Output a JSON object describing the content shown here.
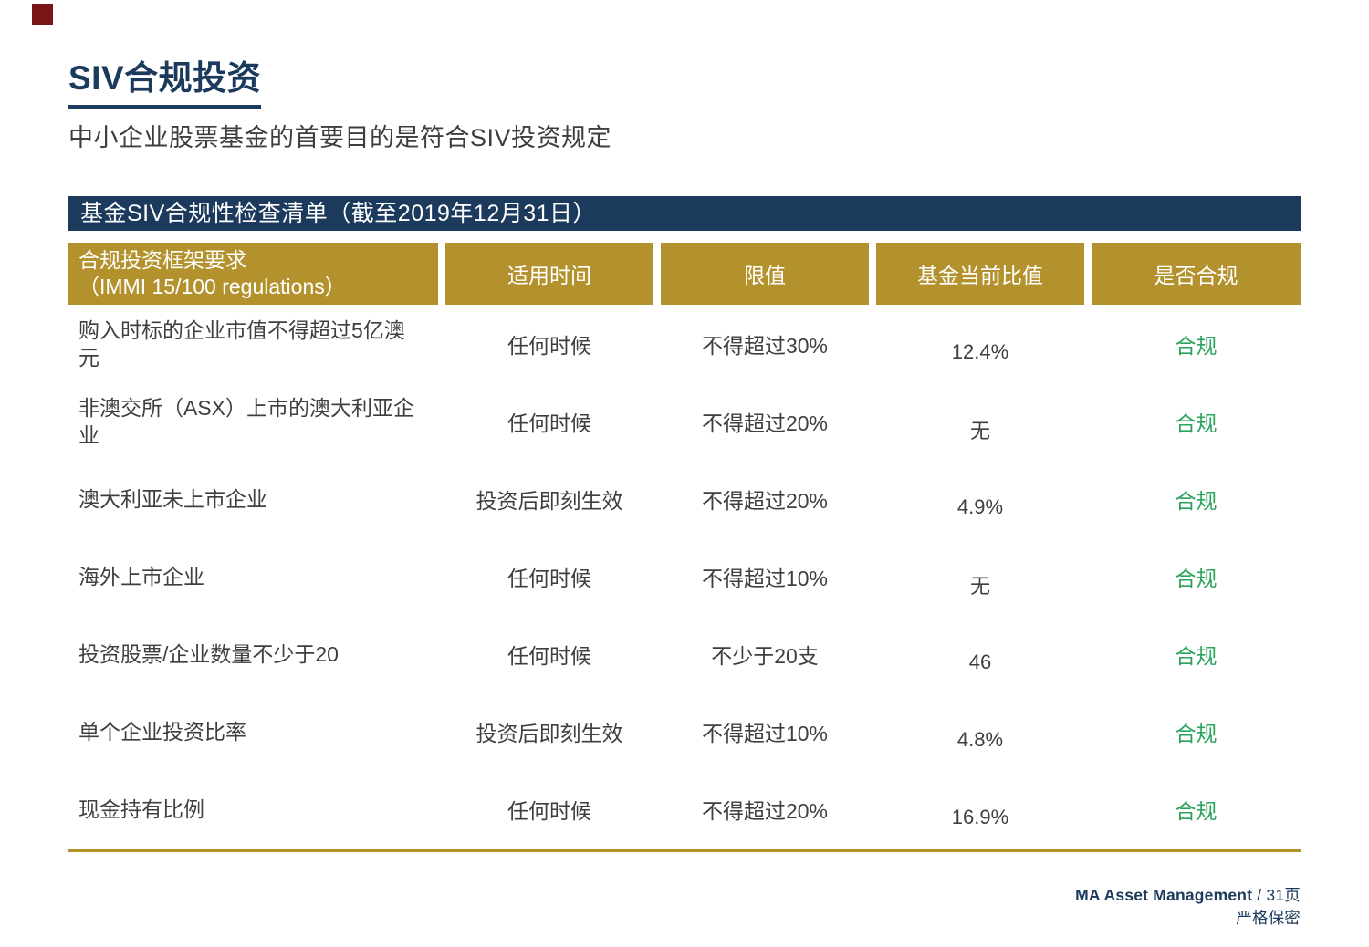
{
  "page": {
    "title": "SIV合规投资",
    "subtitle": "中小企业股票基金的首要目的是符合SIV投资规定"
  },
  "table": {
    "banner": "基金SIV合规性检查清单（截至2019年12月31日）",
    "headers": {
      "requirement_line1": "合规投资框架要求",
      "requirement_line2": "（IMMI 15/100 regulations）",
      "time": "适用时间",
      "limit": "限值",
      "current": "基金当前比值",
      "status": "是否合规"
    },
    "rows": [
      {
        "requirement": "购入时标的企业市值不得超过5亿澳元",
        "time": "任何时候",
        "limit": "不得超过30%",
        "current": "12.4%",
        "status": "合规"
      },
      {
        "requirement": "非澳交所（ASX）上市的澳大利亚企业",
        "time": "任何时候",
        "limit": "不得超过20%",
        "current": "无",
        "status": "合规"
      },
      {
        "requirement": "澳大利亚未上市企业",
        "time": "投资后即刻生效",
        "limit": "不得超过20%",
        "current": "4.9%",
        "status": "合规"
      },
      {
        "requirement": "海外上市企业",
        "time": "任何时候",
        "limit": "不得超过10%",
        "current": "无",
        "status": "合规"
      },
      {
        "requirement": "投资股票/企业数量不少于20",
        "time": "任何时候",
        "limit": "不少于20支",
        "current": "46",
        "status": "合规"
      },
      {
        "requirement": "单个企业投资比率",
        "time": "投资后即刻生效",
        "limit": "不得超过10%",
        "current": "4.8%",
        "status": "合规"
      },
      {
        "requirement": "现金持有比例",
        "time": "任何时候",
        "limit": "不得超过20%",
        "current": "16.9%",
        "status": "合规"
      }
    ]
  },
  "footer": {
    "company": "MA Asset Management",
    "page_suffix": " / 31页",
    "confidential": "严格保密"
  },
  "colors": {
    "navy": "#1b3a5c",
    "gold": "#b3922e",
    "green": "#2aa35c",
    "brand_red": "#7a1518",
    "body_text": "#3f3f3f"
  }
}
